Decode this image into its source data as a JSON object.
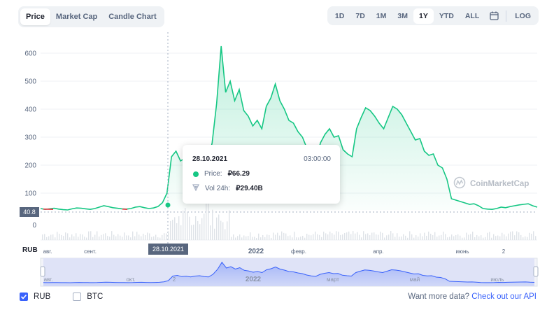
{
  "tabs": {
    "items": [
      "Price",
      "Market Cap",
      "Candle Chart"
    ],
    "active": "Price"
  },
  "ranges": {
    "items": [
      "1D",
      "7D",
      "1M",
      "3M",
      "1Y",
      "YTD",
      "ALL"
    ],
    "active": "1Y",
    "log_label": "LOG"
  },
  "tooltip": {
    "date": "28.10.2021",
    "time": "03:00:00",
    "price_label": "Price:",
    "price_value": "₽66.29",
    "vol_label": "Vol 24h:",
    "vol_value": "₽29.40B"
  },
  "watermark": "CoinMarketCap",
  "current_price_tag": "40.8",
  "hover_date_tag": "28.10.2021",
  "currency_axis_label": "RUB",
  "legend": {
    "rub": "RUB",
    "btc": "BTC"
  },
  "footer": {
    "text": "Want more data?",
    "link": "Check out our API"
  },
  "colors": {
    "line": "#16c784",
    "accent": "#3861fb",
    "down": "#ea3943"
  },
  "chart_data": {
    "type": "area",
    "y_ticks": [
      "600",
      "500",
      "400",
      "300",
      "200",
      "100"
    ],
    "x_ticks": [
      "авг.",
      "сент.",
      "2022",
      "февр.",
      "апр.",
      "июнь",
      "2"
    ],
    "nav_ticks": [
      "авг.",
      "окт.",
      "2",
      "2022",
      "март",
      "май",
      "июль"
    ],
    "volume_tick": "0",
    "ylim": [
      0,
      650
    ],
    "series": [
      {
        "values": [
          45,
          42,
          44,
          46,
          43,
          41,
          40,
          44,
          47,
          46,
          44,
          42,
          45,
          50,
          55,
          52,
          48,
          46,
          44,
          43,
          45,
          50,
          52,
          48,
          45,
          47,
          52,
          66,
          100,
          230,
          250,
          215,
          225,
          205,
          230,
          240,
          215,
          205,
          280,
          420,
          625,
          460,
          500,
          430,
          470,
          395,
          375,
          340,
          360,
          330,
          410,
          440,
          490,
          430,
          400,
          360,
          350,
          320,
          300,
          260,
          235,
          220,
          280,
          310,
          330,
          300,
          305,
          255,
          240,
          230,
          330,
          370,
          405,
          395,
          375,
          350,
          330,
          370,
          410,
          400,
          380,
          350,
          320,
          290,
          295,
          250,
          235,
          240,
          200,
          190,
          150,
          80,
          75,
          70,
          65,
          60,
          62,
          55,
          45,
          43,
          42,
          45,
          50,
          48,
          52,
          55,
          58,
          60,
          62,
          55,
          50
        ]
      }
    ]
  }
}
